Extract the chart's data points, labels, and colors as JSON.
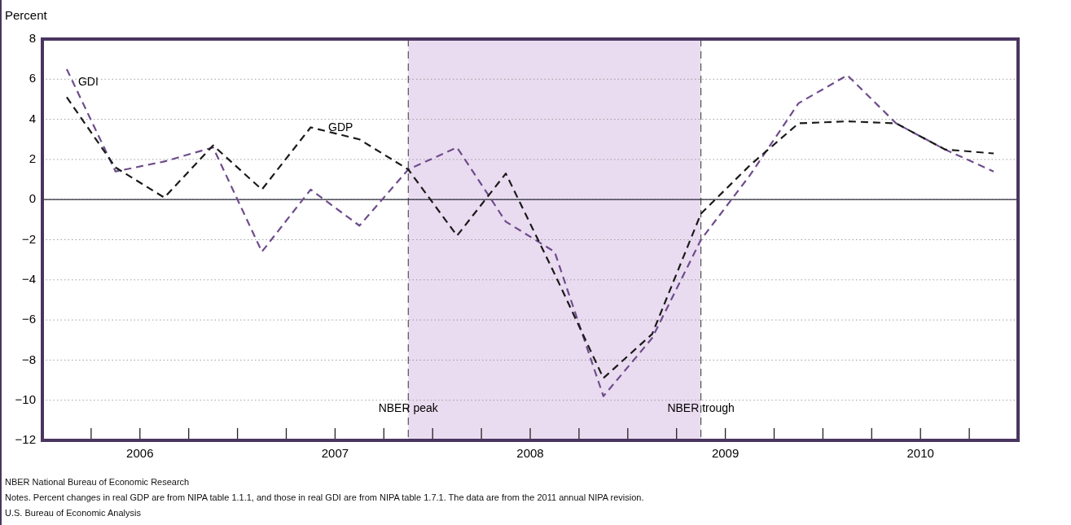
{
  "chart_data": {
    "type": "line",
    "ylabel": "Percent",
    "x": [
      2006.125,
      2006.375,
      2006.625,
      2006.875,
      2007.125,
      2007.375,
      2007.625,
      2007.875,
      2008.125,
      2008.375,
      2008.625,
      2008.875,
      2009.125,
      2009.375,
      2009.625,
      2009.875,
      2010.125,
      2010.375,
      2010.625,
      2010.875
    ],
    "series": [
      {
        "name": "GDP",
        "color": "#1a1a1a",
        "values": [
          5.1,
          1.6,
          0.1,
          2.7,
          0.5,
          3.6,
          3.0,
          1.5,
          -1.8,
          1.3,
          -3.7,
          -8.9,
          -6.7,
          -0.7,
          1.7,
          3.8,
          3.9,
          3.8,
          2.5,
          2.3
        ]
      },
      {
        "name": "GDI",
        "color": "#6e4c8c",
        "values": [
          6.5,
          1.4,
          1.9,
          2.6,
          -2.6,
          0.5,
          -1.3,
          1.5,
          2.6,
          -1.1,
          -2.6,
          -9.8,
          -6.9,
          -2.0,
          1.2,
          4.8,
          6.2,
          3.8,
          2.5,
          1.4
        ]
      }
    ],
    "xlim": [
      2006,
      2011
    ],
    "xticks": [
      {
        "value": 2006.25,
        "label": null
      },
      {
        "value": 2006.5,
        "label": "2006"
      },
      {
        "value": 2006.75,
        "label": null
      },
      {
        "value": 2007,
        "label": null
      },
      {
        "value": 2007.25,
        "label": null
      },
      {
        "value": 2007.5,
        "label": "2007"
      },
      {
        "value": 2007.75,
        "label": null
      },
      {
        "value": 2008,
        "label": null
      },
      {
        "value": 2008.25,
        "label": null
      },
      {
        "value": 2008.5,
        "label": "2008"
      },
      {
        "value": 2008.75,
        "label": null
      },
      {
        "value": 2009,
        "label": null
      },
      {
        "value": 2009.25,
        "label": null
      },
      {
        "value": 2009.5,
        "label": "2009"
      },
      {
        "value": 2009.75,
        "label": null
      },
      {
        "value": 2010,
        "label": null
      },
      {
        "value": 2010.25,
        "label": null
      },
      {
        "value": 2010.5,
        "label": "2010"
      },
      {
        "value": 2010.75,
        "label": null
      }
    ],
    "ylim": [
      -12,
      8
    ],
    "yticks": [
      -12,
      -10,
      -8,
      -6,
      -4,
      -2,
      0,
      2,
      4,
      6,
      8
    ],
    "grid": "y",
    "legend": false,
    "marker": "none",
    "line_style": "dashed",
    "ref_lines": [
      {
        "axis": "x",
        "value": 2007.875,
        "label": "NBER peak",
        "color": "#333333",
        "line_style": "dashed"
      },
      {
        "axis": "x",
        "value": 2009.375,
        "label": "NBER trough",
        "color": "#333333",
        "line_style": "dashed"
      },
      {
        "axis": "y",
        "value": 0,
        "color": "#2a2a3a",
        "line_style": "solid"
      }
    ],
    "bands": [
      {
        "axis": "x",
        "from": 2007.875,
        "to": 2009.375,
        "color": "#eadcf0"
      }
    ],
    "annotations": [
      "NBER National Bureau of Economic Research",
      "Notes. Percent changes in real GDP are from NIPA table 1.1.1, and those in real GDI are from NIPA table 1.7.1. The data are from the 2011 annual NIPA revision.",
      "U.S. Bureau of Economic Analysis"
    ]
  }
}
